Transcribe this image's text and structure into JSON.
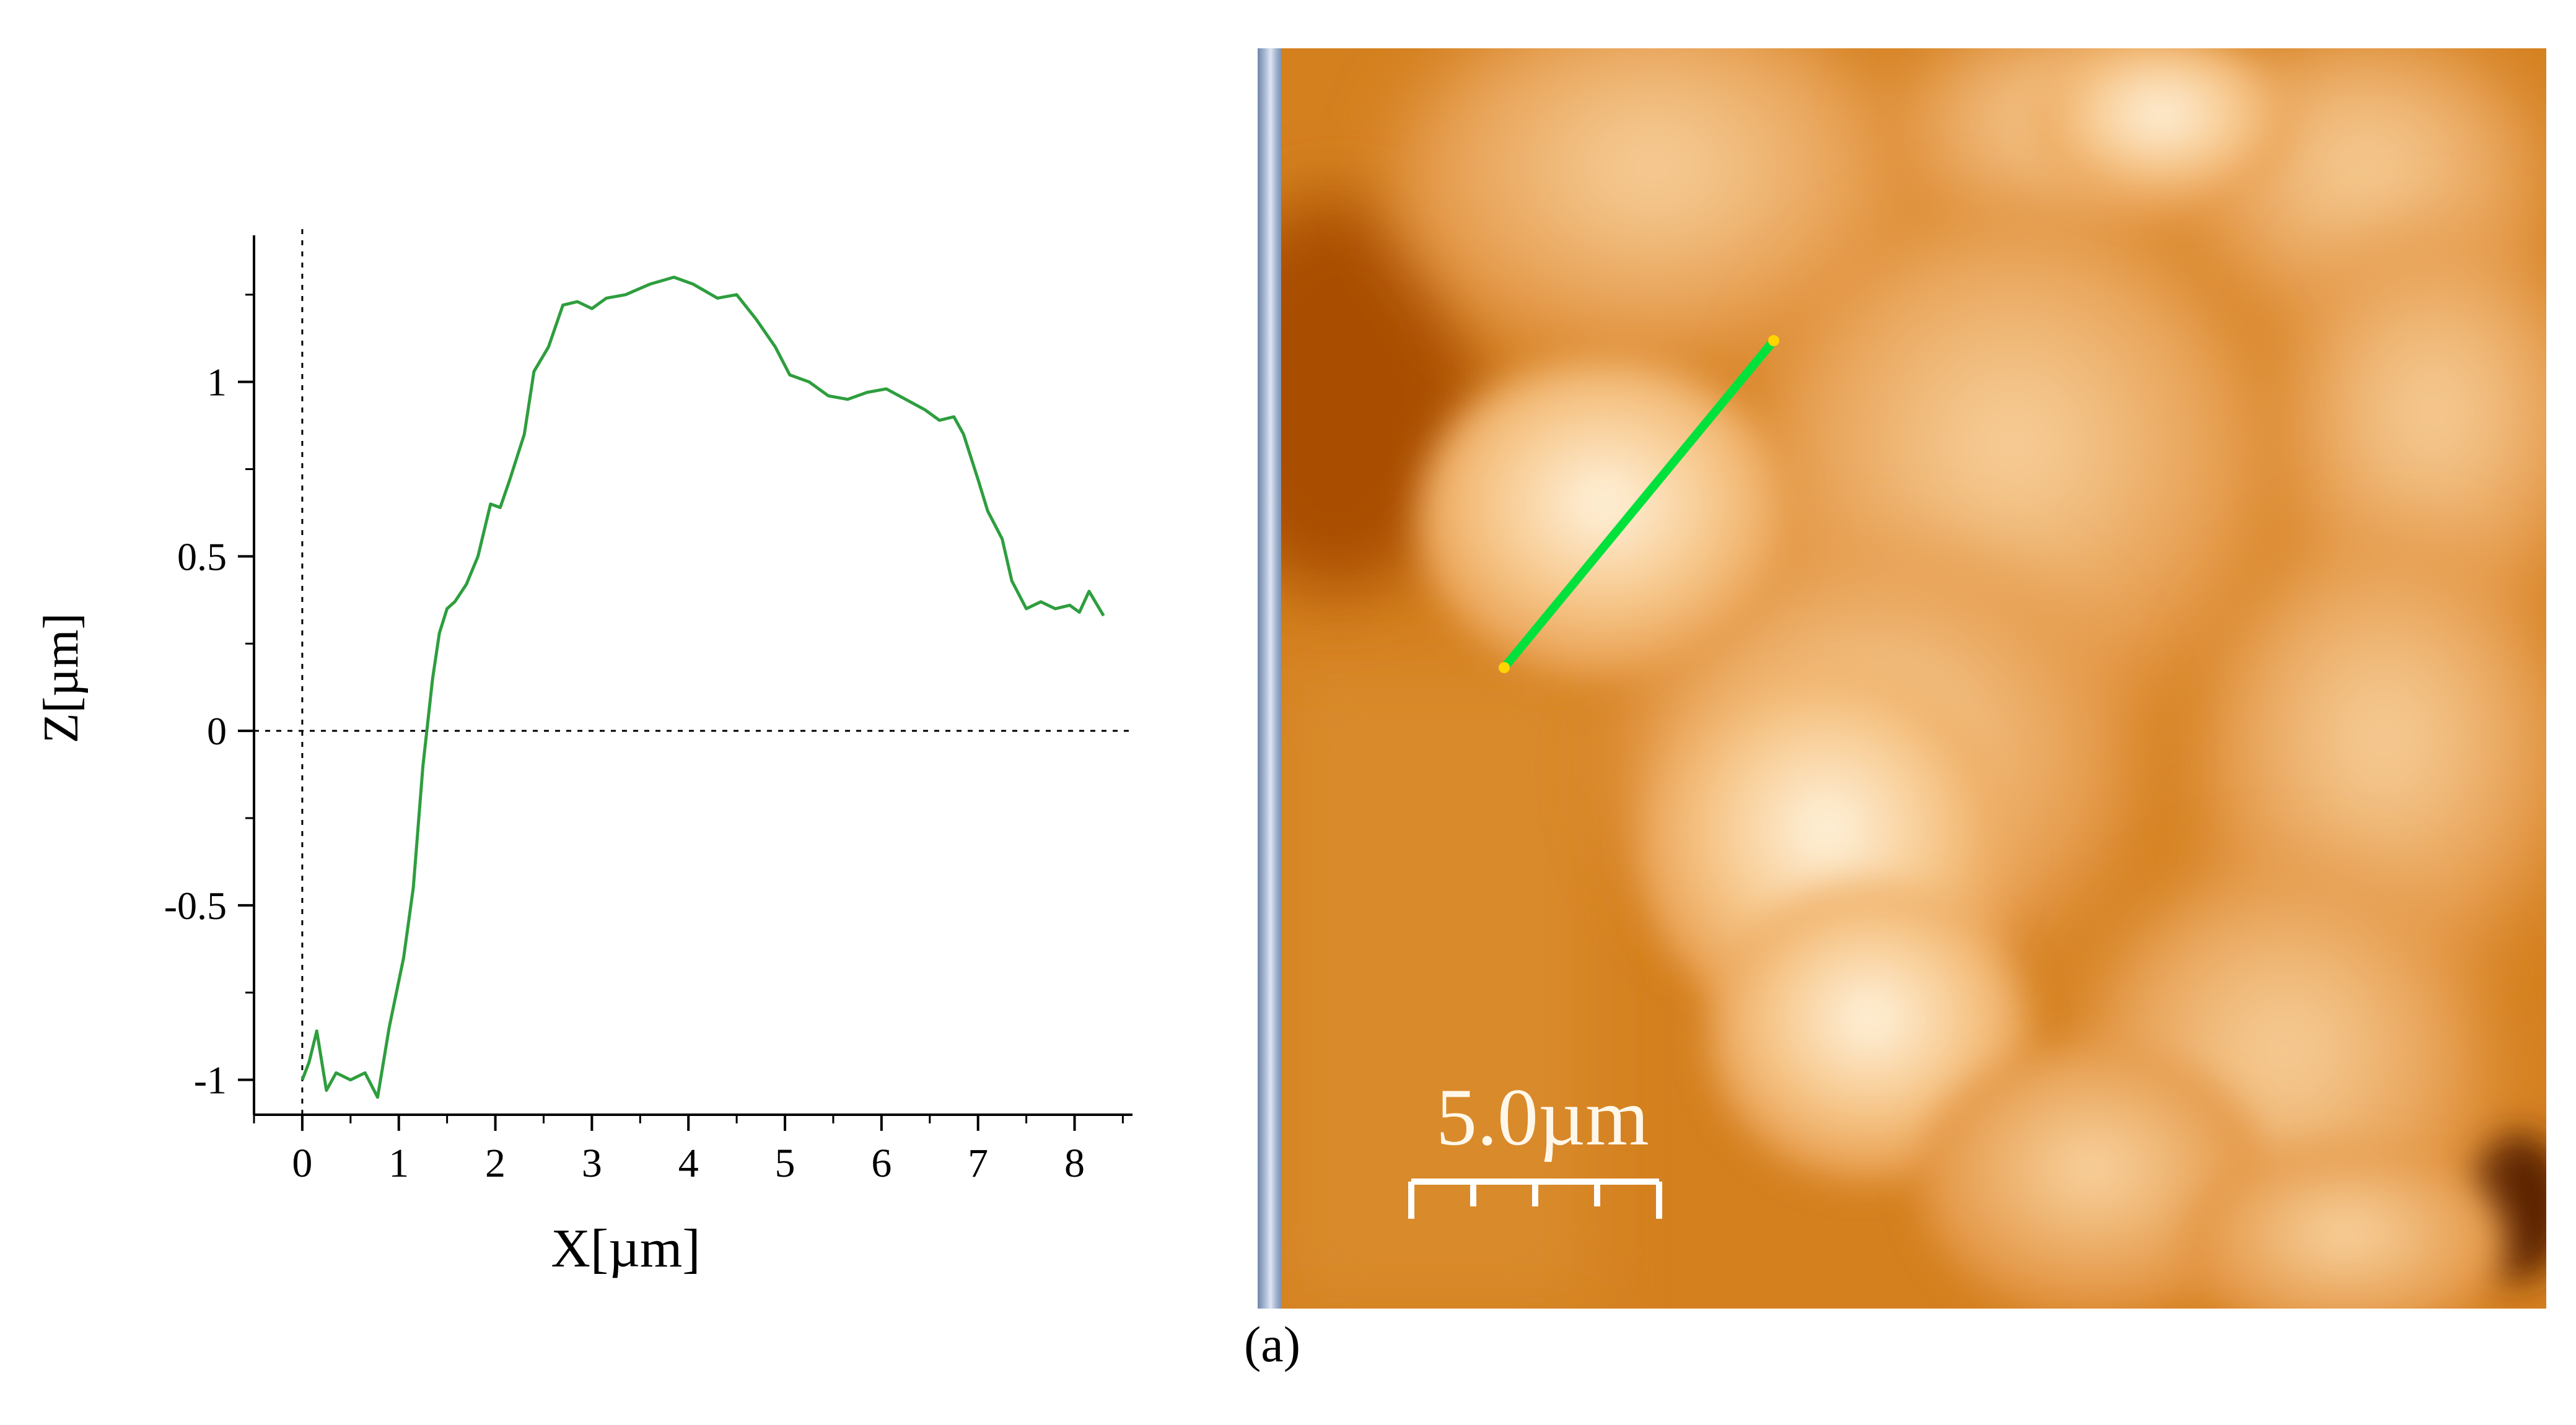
{
  "chart_data": {
    "type": "line",
    "title": "",
    "xlabel": "X[µm]",
    "ylabel": "Z[µm]",
    "xlim": [
      -0.5,
      8.6
    ],
    "ylim": [
      -1.1,
      1.42
    ],
    "x_ticks": [
      0,
      1,
      2,
      3,
      4,
      5,
      6,
      7,
      8
    ],
    "y_ticks": [
      -1,
      -0.5,
      0,
      0.5,
      1
    ],
    "y_tick_labels": [
      "-1",
      "-0.5",
      "0",
      "0.5",
      "1"
    ],
    "reference_lines": [
      {
        "axis": "x",
        "value": 0,
        "style": "dotted"
      },
      {
        "axis": "y",
        "value": 0,
        "style": "dotted"
      }
    ],
    "grid": false,
    "series": [
      {
        "color": "#2e9e3e",
        "x": [
          0.0,
          0.07,
          0.15,
          0.25,
          0.35,
          0.5,
          0.65,
          0.78,
          0.9,
          1.05,
          1.15,
          1.25,
          1.35,
          1.42,
          1.5,
          1.58,
          1.7,
          1.82,
          1.95,
          2.05,
          2.15,
          2.3,
          2.4,
          2.55,
          2.7,
          2.85,
          3.0,
          3.15,
          3.35,
          3.6,
          3.85,
          4.05,
          4.3,
          4.5,
          4.7,
          4.9,
          5.05,
          5.25,
          5.45,
          5.65,
          5.85,
          6.05,
          6.25,
          6.45,
          6.6,
          6.75,
          6.85,
          7.0,
          7.1,
          7.25,
          7.35,
          7.5,
          7.65,
          7.8,
          7.95,
          8.05,
          8.15,
          8.3
        ],
        "y": [
          -1.0,
          -0.95,
          -0.86,
          -1.03,
          -0.98,
          -1.0,
          -0.98,
          -1.05,
          -0.85,
          -0.65,
          -0.45,
          -0.1,
          0.15,
          0.28,
          0.35,
          0.37,
          0.42,
          0.5,
          0.65,
          0.64,
          0.72,
          0.85,
          1.03,
          1.1,
          1.22,
          1.23,
          1.21,
          1.24,
          1.25,
          1.28,
          1.3,
          1.28,
          1.24,
          1.25,
          1.18,
          1.1,
          1.02,
          1.0,
          0.96,
          0.95,
          0.97,
          0.98,
          0.95,
          0.92,
          0.89,
          0.9,
          0.85,
          0.72,
          0.63,
          0.55,
          0.43,
          0.35,
          0.37,
          0.35,
          0.36,
          0.34,
          0.4,
          0.33
        ]
      }
    ]
  },
  "afm_image": {
    "scale_bar_label": "5.0µm",
    "line_color": "#00e13c",
    "endpoint_color": "#ffd400"
  },
  "caption": "(a)"
}
